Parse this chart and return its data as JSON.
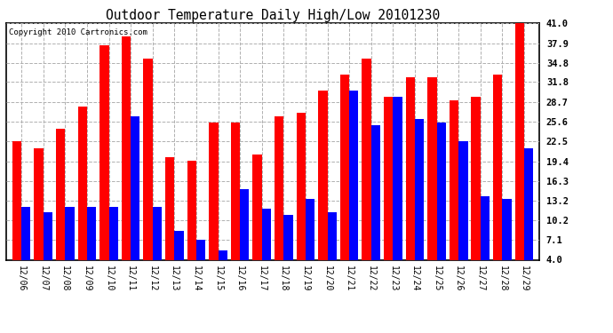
{
  "title": "Outdoor Temperature Daily High/Low 20101230",
  "copyright": "Copyright 2010 Cartronics.com",
  "dates": [
    "12/06",
    "12/07",
    "12/08",
    "12/09",
    "12/10",
    "12/11",
    "12/12",
    "12/13",
    "12/14",
    "12/15",
    "12/16",
    "12/17",
    "12/18",
    "12/19",
    "12/20",
    "12/21",
    "12/22",
    "12/23",
    "12/24",
    "12/25",
    "12/26",
    "12/27",
    "12/28",
    "12/29"
  ],
  "highs": [
    22.5,
    21.5,
    24.5,
    28.0,
    37.5,
    39.0,
    35.5,
    20.0,
    19.5,
    25.5,
    25.5,
    20.5,
    26.5,
    27.0,
    30.5,
    33.0,
    35.5,
    29.5,
    32.5,
    32.5,
    29.0,
    29.5,
    33.0,
    41.0
  ],
  "lows": [
    12.2,
    11.5,
    12.2,
    12.2,
    12.2,
    26.5,
    12.2,
    8.5,
    7.1,
    5.5,
    15.0,
    12.0,
    11.0,
    13.5,
    11.5,
    30.5,
    25.0,
    29.5,
    26.0,
    25.5,
    22.5,
    14.0,
    13.5,
    21.5
  ],
  "high_color": "#ff0000",
  "low_color": "#0000ff",
  "bg_color": "#ffffff",
  "plot_bg_color": "#ffffff",
  "grid_color": "#b0b0b0",
  "yticks": [
    4.0,
    7.1,
    10.2,
    13.2,
    16.3,
    19.4,
    22.5,
    25.6,
    28.7,
    31.8,
    34.8,
    37.9,
    41.0
  ],
  "ymin": 4.0,
  "ymax": 41.0,
  "bar_width": 0.42
}
